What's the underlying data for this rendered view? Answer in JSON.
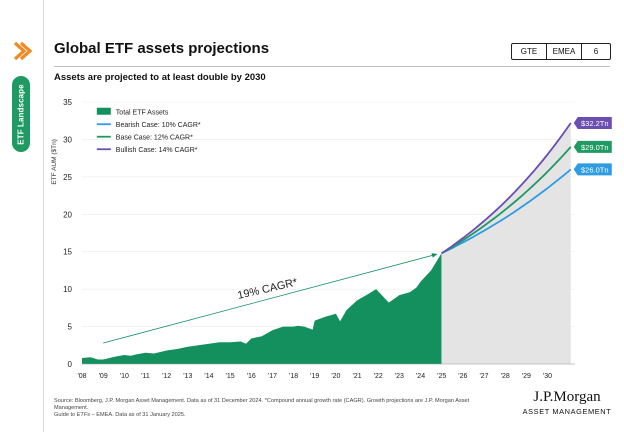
{
  "sidebar": {
    "tab_label": "ETF Landscape"
  },
  "header": {
    "title": "Global ETF assets projections",
    "badges": [
      "GTE",
      "EMEA",
      "6"
    ]
  },
  "subtitle": "Assets are projected to at least double by 2030",
  "colors": {
    "green": "#13905e",
    "bearish": "#2f9be3",
    "base": "#1f9a62",
    "bullish": "#6a4fb0",
    "projection_fill": "#e4e4e4",
    "accent_orange": "#f08a24"
  },
  "chart_data": {
    "type": "area",
    "title": "Global ETF assets projections",
    "ylabel": "ETF AUM ($Tn)",
    "xlabel": "",
    "ylim": [
      0,
      35
    ],
    "y_ticks": [
      0,
      5,
      10,
      15,
      20,
      25,
      30,
      35
    ],
    "x_ticks": [
      "'08",
      "'09",
      "'10",
      "'11",
      "'12",
      "'13",
      "'14",
      "'15",
      "'16",
      "'17",
      "'18",
      "'19",
      "'20",
      "'21",
      "'22",
      "'23",
      "'24",
      "'25",
      "'26",
      "'27",
      "'28",
      "'29",
      "'30"
    ],
    "xlim": [
      2008,
      2031.3
    ],
    "annotation": "19% CAGR*",
    "legend": [
      "Total ETF Assets",
      "Bearish Case: 10% CAGR*",
      "Base Case: 12% CAGR*",
      "Bullish Case: 14% CAGR*"
    ],
    "series": [
      {
        "name": "Total ETF Assets",
        "x": [
          2008.0,
          2008.4,
          2008.75,
          2009.0,
          2009.3,
          2009.6,
          2010.0,
          2010.3,
          2010.6,
          2011.0,
          2011.4,
          2011.7,
          2012.0,
          2012.5,
          2013.0,
          2013.5,
          2014.0,
          2014.5,
          2015.0,
          2015.5,
          2015.75,
          2016.0,
          2016.5,
          2017.0,
          2017.5,
          2018.0,
          2018.2,
          2018.5,
          2018.9,
          2019.0,
          2019.5,
          2020.0,
          2020.2,
          2020.5,
          2021.0,
          2021.5,
          2021.9,
          2022.2,
          2022.5,
          2022.8,
          2023.0,
          2023.5,
          2023.8,
          2024.0,
          2024.5,
          2024.99
        ],
        "values": [
          0.8,
          0.9,
          0.6,
          0.6,
          0.8,
          1.0,
          1.2,
          1.1,
          1.3,
          1.5,
          1.4,
          1.6,
          1.8,
          2.0,
          2.3,
          2.5,
          2.7,
          2.9,
          2.9,
          3.0,
          2.7,
          3.4,
          3.7,
          4.5,
          5.0,
          5.0,
          5.1,
          5.0,
          4.6,
          5.8,
          6.3,
          6.7,
          5.7,
          7.2,
          8.5,
          9.3,
          10.0,
          9.1,
          8.2,
          8.8,
          9.2,
          9.6,
          10.2,
          11.0,
          12.5,
          14.8
        ]
      },
      {
        "name": "Bearish Case: 10% CAGR*",
        "start": [
          2025.0,
          14.8
        ],
        "end": [
          2031.1,
          26.0
        ],
        "end_label": "$26.0Tn"
      },
      {
        "name": "Base Case: 12% CAGR*",
        "start": [
          2025.0,
          14.8
        ],
        "end": [
          2031.1,
          29.0
        ],
        "end_label": "$29.0Tn"
      },
      {
        "name": "Bullish Case: 14% CAGR*",
        "start": [
          2025.0,
          14.8
        ],
        "end": [
          2031.1,
          32.2
        ],
        "end_label": "$32.2Tn"
      }
    ],
    "trend_arrow": {
      "from": [
        2009.0,
        2.8
      ],
      "to": [
        2025.0,
        14.8
      ]
    }
  },
  "footer": {
    "source_line1": "Source: Bloomberg, J.P. Morgan Asset Management. Data as of 31 December 2024. *Compound annual growth rate (CAGR). Growth projections are J.P.",
    "source_line2": "Morgan Asset Management.",
    "source_guide_prefix": "Guide to ",
    "source_guide_em": "ETFs",
    "source_guide_suffix": " – EMEA. Data as of 31 January 2025.",
    "brand_name": "J.P.Morgan",
    "brand_sub": "ASSET MANAGEMENT"
  }
}
